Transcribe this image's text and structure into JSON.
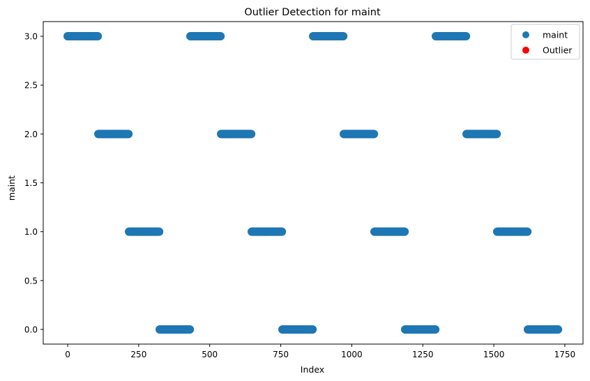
{
  "chart_data": {
    "type": "scatter",
    "title": "Outlier Detection for maint",
    "xlabel": "Index",
    "ylabel": "maint",
    "xlim": [
      -86,
      1814
    ],
    "ylim": [
      -0.15,
      3.15
    ],
    "xticks": [
      0,
      250,
      500,
      750,
      1000,
      1250,
      1500,
      1750
    ],
    "yticks": [
      0.0,
      0.5,
      1.0,
      1.5,
      2.0,
      2.5,
      3.0
    ],
    "ytick_labels": [
      "0.0",
      "0.5",
      "1.0",
      "1.5",
      "2.0",
      "2.5",
      "3.0"
    ],
    "grid": false,
    "legend_position": "top-right",
    "colors": {
      "maint": "#1f77b4",
      "outlier": "#ff0000"
    },
    "series": [
      {
        "name": "maint",
        "segments": [
          {
            "x_start": 0,
            "x_end": 107,
            "y": 3.0
          },
          {
            "x_start": 108,
            "x_end": 215,
            "y": 2.0
          },
          {
            "x_start": 216,
            "x_end": 323,
            "y": 1.0
          },
          {
            "x_start": 324,
            "x_end": 431,
            "y": 0.0
          },
          {
            "x_start": 432,
            "x_end": 539,
            "y": 3.0
          },
          {
            "x_start": 540,
            "x_end": 647,
            "y": 2.0
          },
          {
            "x_start": 648,
            "x_end": 755,
            "y": 1.0
          },
          {
            "x_start": 756,
            "x_end": 863,
            "y": 0.0
          },
          {
            "x_start": 864,
            "x_end": 971,
            "y": 3.0
          },
          {
            "x_start": 972,
            "x_end": 1079,
            "y": 2.0
          },
          {
            "x_start": 1080,
            "x_end": 1187,
            "y": 1.0
          },
          {
            "x_start": 1188,
            "x_end": 1295,
            "y": 0.0
          },
          {
            "x_start": 1296,
            "x_end": 1403,
            "y": 3.0
          },
          {
            "x_start": 1404,
            "x_end": 1511,
            "y": 2.0
          },
          {
            "x_start": 1512,
            "x_end": 1619,
            "y": 1.0
          },
          {
            "x_start": 1620,
            "x_end": 1727,
            "y": 0.0
          }
        ]
      },
      {
        "name": "Outlier",
        "points": []
      }
    ],
    "legend": [
      "maint",
      "Outlier"
    ]
  }
}
